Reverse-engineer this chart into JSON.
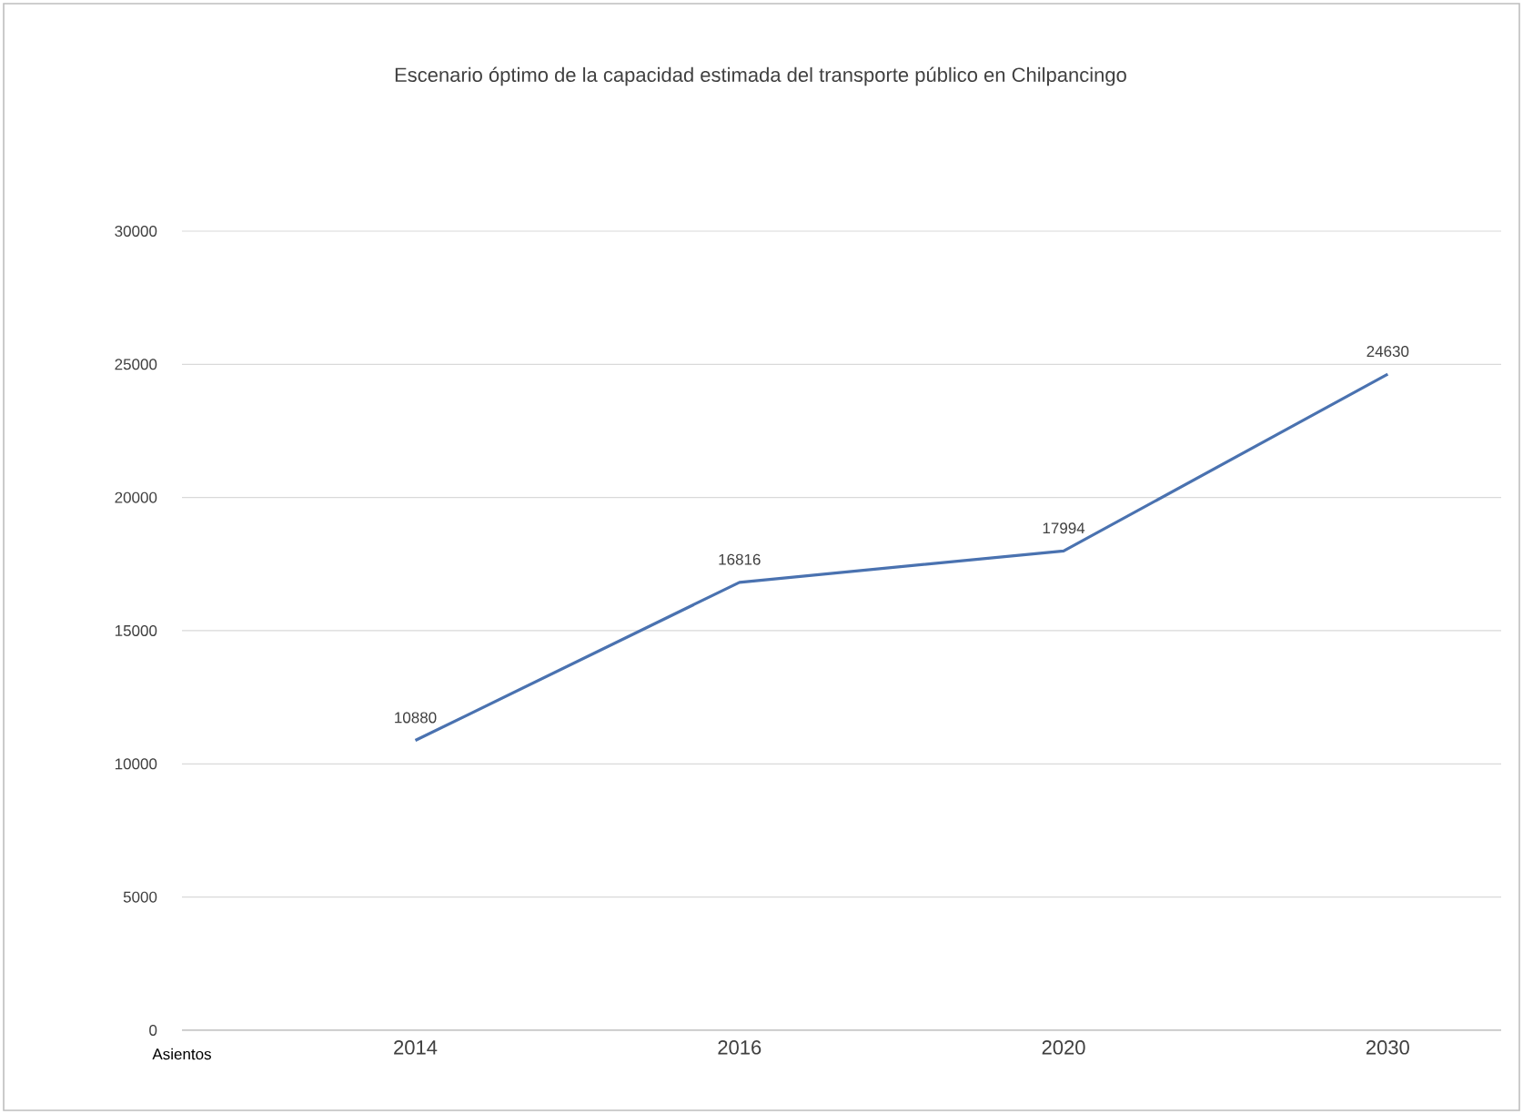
{
  "chart_data": {
    "type": "line",
    "title": "Escenario óptimo de la capacidad estimada del transporte público en Chilpancingo",
    "ylabel": "Asientos",
    "categories": [
      "2014",
      "2016",
      "2020",
      "2030"
    ],
    "series": [
      {
        "color": "#4a72b0",
        "values": [
          10880,
          16816,
          17994,
          24630
        ]
      }
    ],
    "ylim": [
      0,
      30000
    ],
    "yticks": [
      0,
      5000,
      10000,
      15000,
      20000,
      25000,
      30000
    ],
    "grid": "y",
    "data_labels": true
  }
}
